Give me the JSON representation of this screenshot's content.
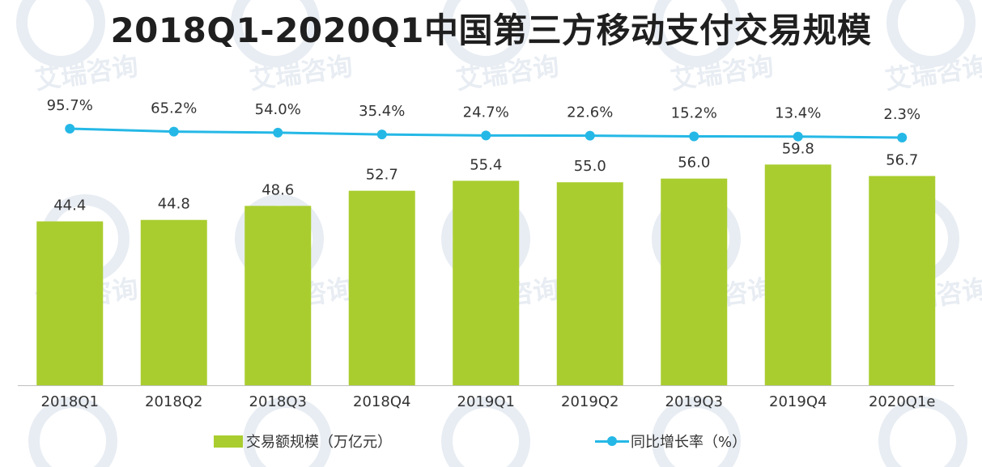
{
  "colors": {
    "bar": "#a9cd2f",
    "line": "#25b8e6",
    "axis": "#bfbfbf",
    "text": "#333333",
    "watermark": "#e8edf3"
  },
  "chart_data": {
    "type": "bar",
    "title": "2018Q1-2020Q1中国第三方移动支付交易规模",
    "categories": [
      "2018Q1",
      "2018Q2",
      "2018Q3",
      "2018Q4",
      "2019Q1",
      "2019Q2",
      "2019Q3",
      "2019Q4",
      "2020Q1e"
    ],
    "series": [
      {
        "name": "交易额规模（万亿元）",
        "type": "bar",
        "values": [
          44.4,
          44.8,
          48.6,
          52.7,
          55.4,
          55.0,
          56.0,
          59.8,
          56.7
        ],
        "labels": [
          "44.4",
          "44.8",
          "48.6",
          "52.7",
          "55.4",
          "55.0",
          "56.0",
          "59.8",
          "56.7"
        ]
      },
      {
        "name": "同比增长率（%）",
        "type": "line",
        "values": [
          95.7,
          65.2,
          54.0,
          35.4,
          24.7,
          22.6,
          15.2,
          13.4,
          2.3
        ],
        "labels": [
          "95.7%",
          "65.2%",
          "54.0%",
          "35.4%",
          "24.7%",
          "22.6%",
          "15.2%",
          "13.4%",
          "2.3%"
        ]
      }
    ],
    "legend_position": "bottom",
    "grid": false
  },
  "legend": {
    "bar_label": "交易额规模（万亿元）",
    "line_label": "同比增长率（%）"
  },
  "watermark": {
    "text": "艾瑞咨询"
  }
}
